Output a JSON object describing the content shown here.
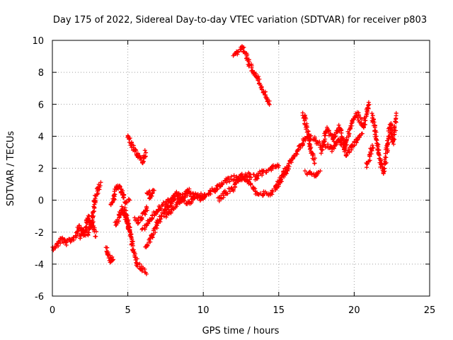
{
  "chart_data": {
    "type": "scatter",
    "title": "Day 175 of 2022, Sidereal Day-to-day VTEC variation (SDTVAR) for receiver p803",
    "xlabel": "GPS time / hours",
    "ylabel": "SDTVAR / TECUs",
    "xlim": [
      0,
      25
    ],
    "ylim": [
      -6,
      10
    ],
    "xticks": [
      "0",
      "5",
      "10",
      "15",
      "20",
      "25"
    ],
    "yticks": [
      "-6",
      "-4",
      "-2",
      "0",
      "2",
      "4",
      "6",
      "8",
      "10"
    ],
    "grid": true,
    "marker": "plus",
    "color": "#ff0000",
    "series": [
      {
        "name": "SDTVAR",
        "tracks": [
          {
            "x": [
              0,
              0.3,
              0.6,
              0.9,
              1.2,
              1.5,
              1.8,
              2.1,
              2.4,
              2.6,
              2.8,
              3.0,
              3.2
            ],
            "y": [
              -3.0,
              -2.8,
              -2.4,
              -2.7,
              -2.5,
              -2.3,
              -1.6,
              -2.2,
              -1.0,
              -1.6,
              0.0,
              0.6,
              1.0
            ]
          },
          {
            "x": [
              1.8,
              2.0,
              2.3,
              2.6,
              2.9
            ],
            "y": [
              -2.4,
              -1.8,
              -2.1,
              -1.4,
              -2.2
            ]
          },
          {
            "x": [
              3.6,
              3.7,
              3.8,
              3.9,
              4.0
            ],
            "y": [
              -3.0,
              -3.4,
              -3.7,
              -3.8,
              -3.6
            ]
          },
          {
            "x": [
              3.9,
              4.1,
              4.3,
              4.5,
              4.7,
              4.9,
              5.1
            ],
            "y": [
              -0.3,
              0.3,
              0.9,
              0.7,
              0.2,
              -0.1,
              0.0
            ]
          },
          {
            "x": [
              4.8,
              4.9,
              5.0,
              5.1,
              5.2
            ],
            "y": [
              -0.6,
              -1.0,
              -1.4,
              -1.8,
              -2.2
            ]
          },
          {
            "x": [
              4.2,
              4.4,
              4.6,
              4.8,
              5.0,
              5.2,
              5.4,
              5.6,
              5.9,
              6.2
            ],
            "y": [
              -1.5,
              -1.0,
              -0.5,
              -0.9,
              -1.6,
              -2.4,
              -3.2,
              -3.9,
              -4.3,
              -4.5
            ]
          },
          {
            "x": [
              5.0,
              5.2,
              5.4,
              5.6,
              5.8,
              6.0,
              6.2
            ],
            "y": [
              3.9,
              3.6,
              3.2,
              2.9,
              2.6,
              2.4,
              3.0
            ]
          },
          {
            "x": [
              5.5,
              5.7,
              5.9,
              6.1,
              6.3
            ],
            "y": [
              -1.2,
              -1.4,
              -1.0,
              -0.8,
              -0.4
            ]
          },
          {
            "x": [
              6.3,
              6.4,
              6.5,
              6.6,
              6.7
            ],
            "y": [
              0.6,
              0.4,
              0.2,
              0.4,
              0.6
            ]
          },
          {
            "x": [
              6.0,
              6.5,
              7.0,
              7.5,
              8.0,
              8.5,
              9.0,
              9.5,
              10.0
            ],
            "y": [
              -1.8,
              -1.2,
              -0.6,
              -0.2,
              0.2,
              0.0,
              0.5,
              0.2,
              0.3
            ]
          },
          {
            "x": [
              6.2,
              6.6,
              7.0,
              7.4,
              7.8,
              8.2,
              8.6,
              9.0
            ],
            "y": [
              -3.0,
              -2.2,
              -1.4,
              -0.8,
              -0.2,
              0.4,
              0.2,
              0.6
            ]
          },
          {
            "x": [
              7.5,
              8.0,
              8.5,
              9.0,
              9.5,
              10.0
            ],
            "y": [
              -1.0,
              -0.5,
              0.0,
              -0.2,
              0.3,
              0.0
            ]
          },
          {
            "x": [
              10.0,
              10.5,
              11.0,
              11.5,
              12.0,
              12.5,
              13.0,
              13.5,
              14.0,
              14.5,
              15.0
            ],
            "y": [
              0.2,
              0.5,
              0.8,
              1.2,
              1.4,
              1.3,
              1.6,
              1.4,
              1.8,
              2.0,
              2.2
            ]
          },
          {
            "x": [
              11.0,
              11.5,
              12.0,
              12.5,
              13.0,
              13.5,
              14.0,
              14.4,
              14.8,
              15.2,
              15.6
            ],
            "y": [
              0.0,
              0.5,
              0.7,
              1.6,
              1.2,
              0.5,
              0.4,
              0.3,
              0.8,
              1.4,
              2.0
            ]
          },
          {
            "x": [
              12.0,
              12.3,
              12.6,
              12.9,
              13.2,
              13.6,
              14.0,
              14.4
            ],
            "y": [
              9.1,
              9.3,
              9.5,
              8.9,
              8.2,
              7.7,
              6.8,
              6.0
            ]
          },
          {
            "x": [
              15.0,
              15.4,
              15.8,
              16.2,
              16.6,
              17.0,
              17.4,
              17.8
            ],
            "y": [
              1.0,
              1.8,
              2.5,
              3.0,
              3.6,
              4.0,
              3.8,
              3.4
            ]
          },
          {
            "x": [
              16.6,
              16.8,
              17.0,
              17.2,
              17.4
            ],
            "y": [
              5.4,
              4.8,
              3.8,
              3.0,
              2.4
            ]
          },
          {
            "x": [
              16.8,
              17.1,
              17.4,
              17.7
            ],
            "y": [
              1.8,
              1.6,
              1.6,
              1.8
            ]
          },
          {
            "x": [
              17.8,
              18.2,
              18.6,
              19.0,
              19.4,
              19.8,
              20.2,
              20.6,
              21.0
            ],
            "y": [
              3.0,
              4.5,
              3.8,
              4.6,
              3.4,
              4.8,
              5.4,
              4.6,
              6.2
            ]
          },
          {
            "x": [
              18.0,
              18.5,
              19.0,
              19.5,
              20.0,
              20.5
            ],
            "y": [
              3.5,
              3.2,
              3.8,
              2.8,
              3.6,
              4.2
            ]
          },
          {
            "x": [
              21.2,
              21.4,
              21.6,
              21.8,
              22.0,
              22.2,
              22.4,
              22.6,
              22.8
            ],
            "y": [
              5.3,
              4.2,
              3.0,
              2.2,
              1.8,
              3.4,
              4.8,
              3.6,
              5.3
            ]
          },
          {
            "x": [
              20.8,
              21.0,
              21.2
            ],
            "y": [
              2.2,
              2.6,
              3.4
            ]
          }
        ]
      }
    ]
  }
}
